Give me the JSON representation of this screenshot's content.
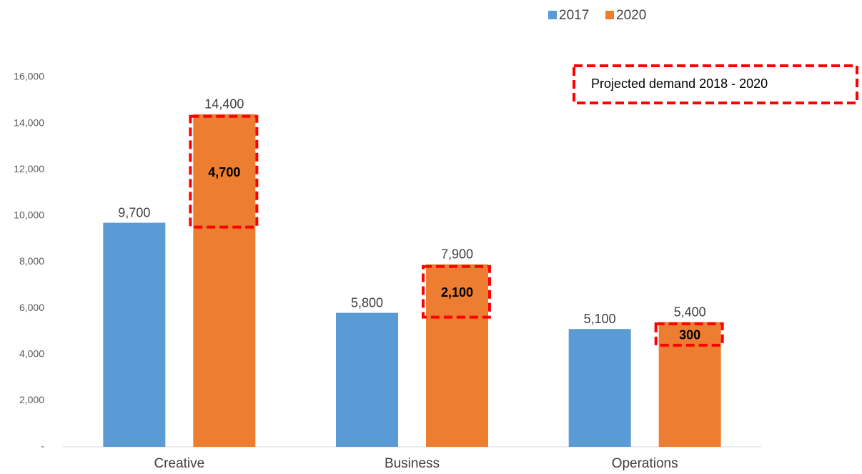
{
  "chart_data": {
    "type": "bar",
    "categories": [
      "Creative",
      "Business",
      "Operations"
    ],
    "series": [
      {
        "name": "2017",
        "color": "#5b9bd5",
        "values": [
          9700,
          5800,
          5100
        ],
        "value_labels": [
          "9,700",
          "5,800",
          "5,100"
        ]
      },
      {
        "name": "2020",
        "color": "#ed7d31",
        "values": [
          14400,
          7900,
          5400
        ],
        "value_labels": [
          "14,400",
          "7,900",
          "5,400"
        ]
      }
    ],
    "increase": {
      "values": [
        4700,
        2100,
        300
      ],
      "value_labels": [
        "4,700",
        "2,100",
        "300"
      ],
      "color": "#ff0000"
    },
    "annotation": "Projected demand 2018 - 2020",
    "ylim": [
      0,
      16000
    ],
    "yticks": [
      {
        "value": 0,
        "label": "-"
      },
      {
        "value": 2000,
        "label": "2,000"
      },
      {
        "value": 4000,
        "label": "4,000"
      },
      {
        "value": 6000,
        "label": "6,000"
      },
      {
        "value": 8000,
        "label": "8,000"
      },
      {
        "value": 10000,
        "label": "10,000"
      },
      {
        "value": 12000,
        "label": "12,000"
      },
      {
        "value": 14000,
        "label": "14,000"
      },
      {
        "value": 16000,
        "label": "16,000"
      }
    ],
    "legend": "top"
  }
}
